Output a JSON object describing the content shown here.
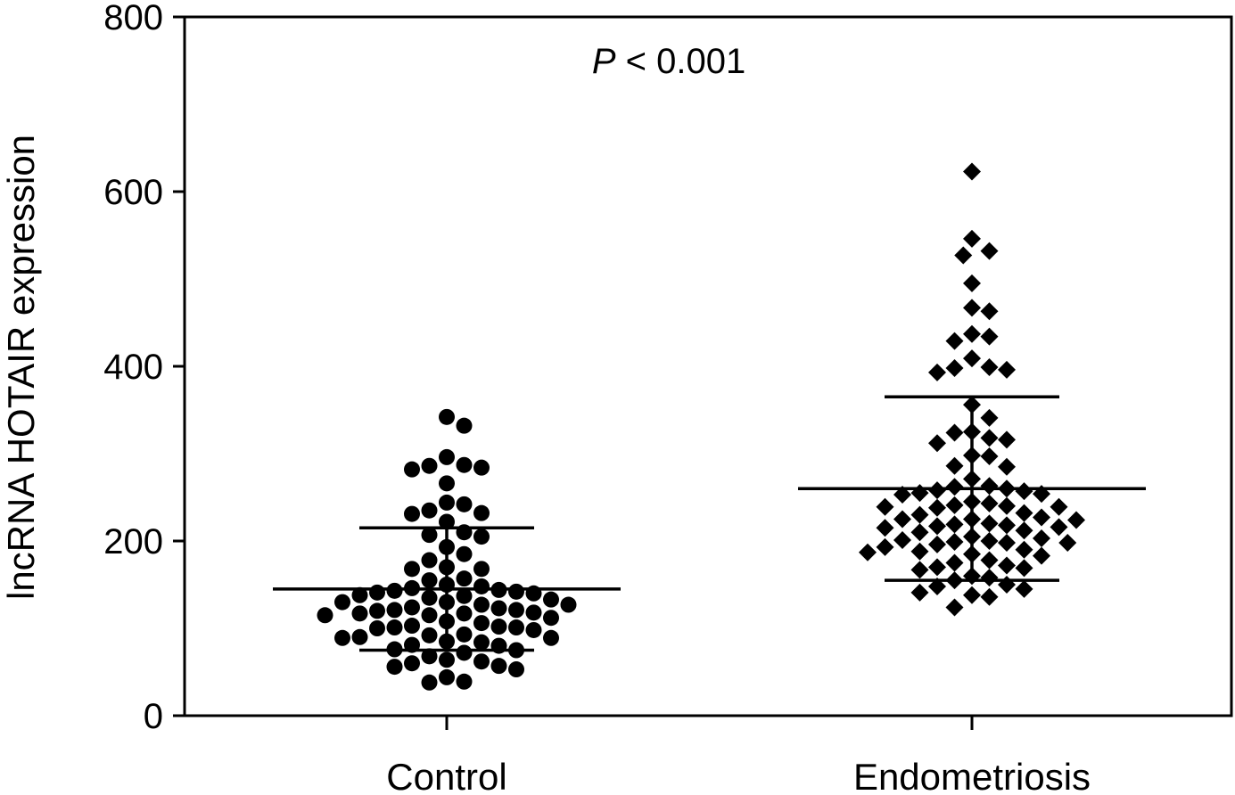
{
  "chart_data": {
    "type": "scatter",
    "ylabel": "lncRNA HOTAIR expression",
    "xlabel": "",
    "ylim": [
      0,
      800
    ],
    "yticks": [
      0,
      200,
      400,
      600,
      800
    ],
    "categories": [
      "Control",
      "Endometriosis"
    ],
    "annotation": {
      "prefix": "P",
      "text": " < 0.001"
    },
    "grid": false,
    "series": [
      {
        "category": "Control",
        "marker": "circle",
        "mean": 145,
        "sd_upper": 215,
        "sd_lower": 75,
        "values": [
          342,
          332,
          296,
          287,
          286,
          284,
          282,
          266,
          244,
          242,
          235,
          232,
          231,
          222,
          210,
          207,
          205,
          193,
          185,
          178,
          170,
          168,
          168,
          157,
          155,
          150,
          148,
          146,
          144,
          143,
          142,
          141,
          140,
          138,
          137,
          135,
          133,
          130,
          130,
          127,
          127,
          124,
          123,
          121,
          121,
          120,
          118,
          117,
          117,
          115,
          115,
          112,
          108,
          106,
          103,
          102,
          101,
          101,
          100,
          98,
          93,
          92,
          90,
          89,
          89,
          85,
          84,
          81,
          80,
          76,
          75,
          72,
          68,
          64,
          62,
          60,
          57,
          56,
          53,
          44,
          39,
          38
        ]
      },
      {
        "category": "Endometriosis",
        "marker": "diamond",
        "mean": 260,
        "sd_upper": 365,
        "sd_lower": 155,
        "values": [
          623,
          546,
          532,
          527,
          495,
          467,
          463,
          437,
          434,
          429,
          409,
          399,
          398,
          396,
          393,
          356,
          341,
          325,
          324,
          318,
          316,
          312,
          298,
          297,
          286,
          285,
          271,
          263,
          262,
          260,
          258,
          257,
          255,
          254,
          253,
          245,
          243,
          241,
          240,
          239,
          239,
          238,
          232,
          230,
          227,
          225,
          225,
          224,
          220,
          219,
          218,
          217,
          216,
          215,
          212,
          210,
          205,
          203,
          201,
          200,
          199,
          198,
          198,
          196,
          193,
          190,
          188,
          187,
          185,
          183,
          178,
          175,
          172,
          170,
          169,
          167,
          160,
          158,
          155,
          150,
          148,
          145,
          141,
          138,
          136,
          124
        ]
      }
    ]
  }
}
